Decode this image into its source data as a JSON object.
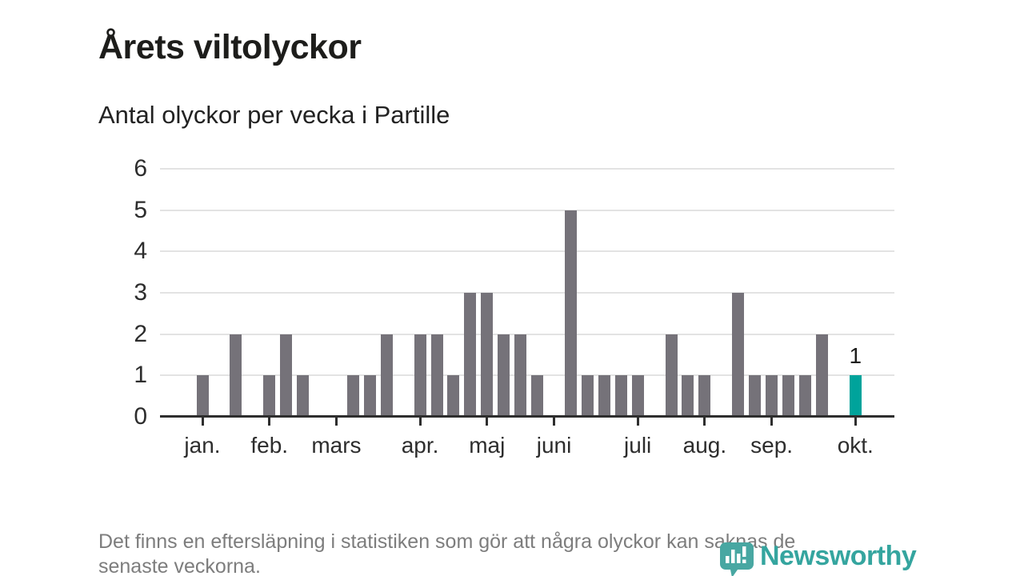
{
  "title": "Årets viltolyckor",
  "subtitle": "Antal olyckor per vecka i Partille",
  "footer": {
    "lines": [
      "Det finns en eftersläpning i statistiken som gör att några olyckor kan saknas de",
      "senaste veckorna."
    ]
  },
  "branding": {
    "logo_text": "Newsworthy",
    "logo_icon": "newsworthy-pin-barchart-icon",
    "logo_text_color": "#35a59f",
    "logo_mark_color": "#48a7a2"
  },
  "chart_data": {
    "type": "bar",
    "title": "Årets viltolyckor",
    "subtitle": "Antal olyckor per vecka i Partille",
    "x_unit": "week",
    "values": [
      1,
      0,
      2,
      0,
      1,
      2,
      1,
      0,
      0,
      1,
      1,
      2,
      0,
      2,
      2,
      1,
      3,
      3,
      2,
      2,
      1,
      0,
      5,
      1,
      1,
      1,
      1,
      0,
      2,
      1,
      1,
      0,
      3,
      1,
      1,
      1,
      1,
      2,
      0,
      1
    ],
    "months": [
      {
        "label": "jan.",
        "week": 1
      },
      {
        "label": "feb.",
        "week": 5
      },
      {
        "label": "mars",
        "week": 9
      },
      {
        "label": "apr.",
        "week": 14
      },
      {
        "label": "maj",
        "week": 18
      },
      {
        "label": "juni",
        "week": 22
      },
      {
        "label": "juli",
        "week": 27
      },
      {
        "label": "aug.",
        "week": 31
      },
      {
        "label": "sep.",
        "week": 35
      },
      {
        "label": "okt.",
        "week": 40
      }
    ],
    "yticks": [
      0,
      1,
      2,
      3,
      4,
      5,
      6
    ],
    "ylim": [
      0,
      6
    ],
    "grid": true,
    "legend": false,
    "bar_color": "#757279",
    "highlight_color": "#00a39b",
    "highlight_last": true,
    "annotation": {
      "week": 40,
      "text": "1"
    }
  }
}
